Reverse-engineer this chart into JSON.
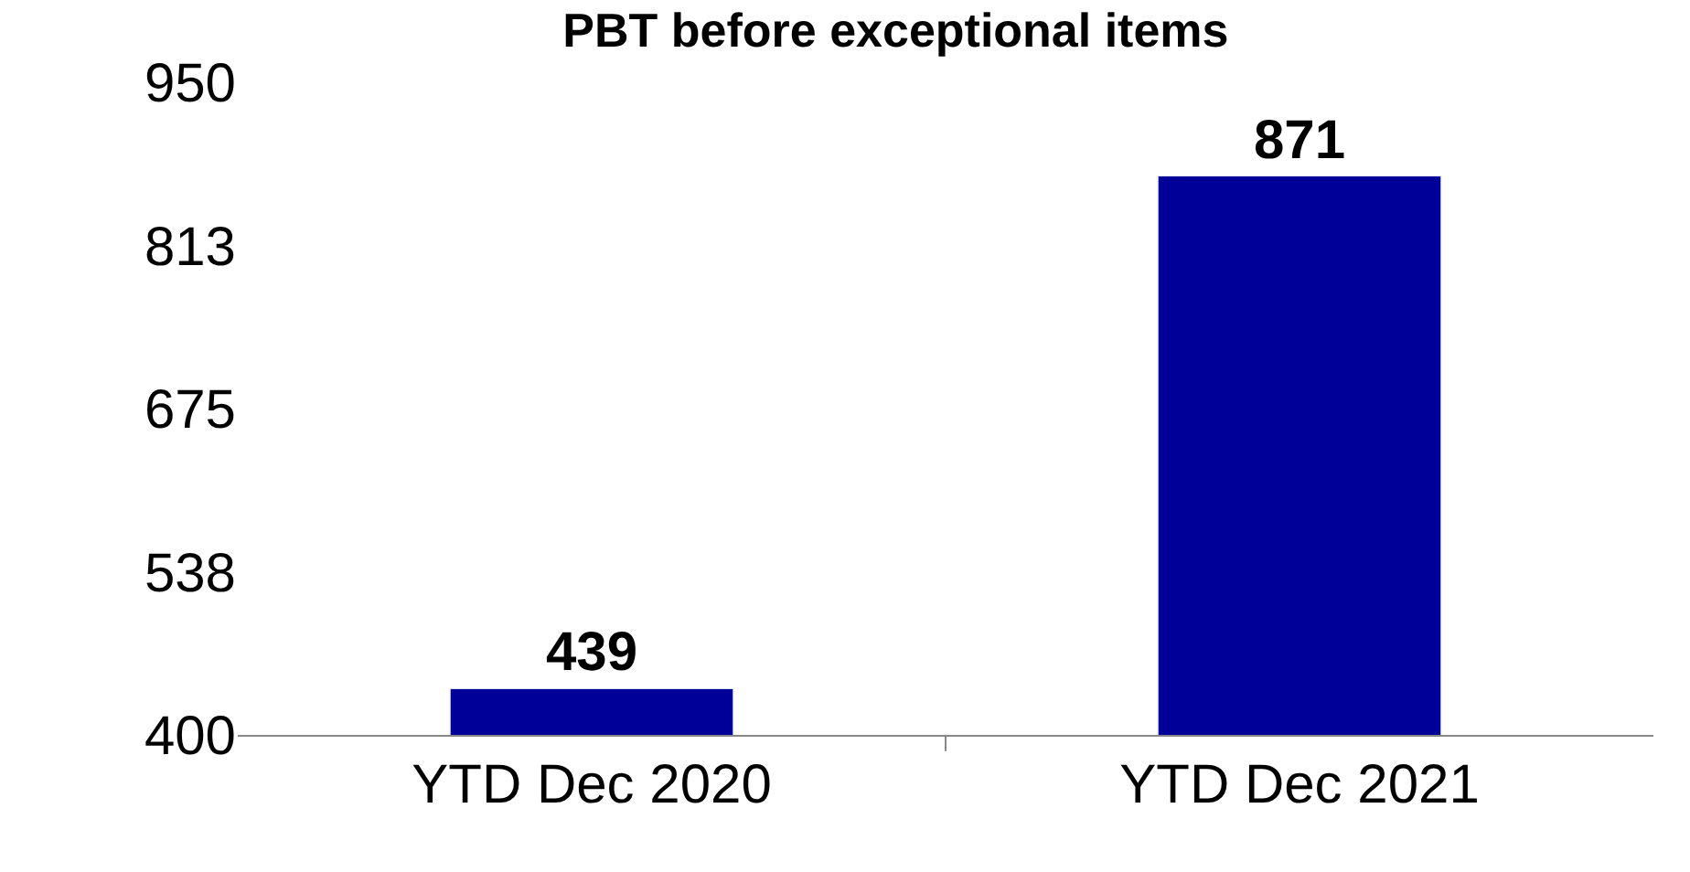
{
  "chart_data": {
    "type": "bar",
    "title": "PBT before exceptional items",
    "categories": [
      "YTD Dec 2020",
      "YTD Dec 2021"
    ],
    "values": [
      439,
      871
    ],
    "color": "#000099",
    "ylim": [
      400,
      950
    ],
    "yticks": [
      400,
      {
        "value": 537.5,
        "label": "538"
      },
      675,
      {
        "value": 812.5,
        "label": "813"
      },
      950
    ],
    "data_labels": true
  }
}
